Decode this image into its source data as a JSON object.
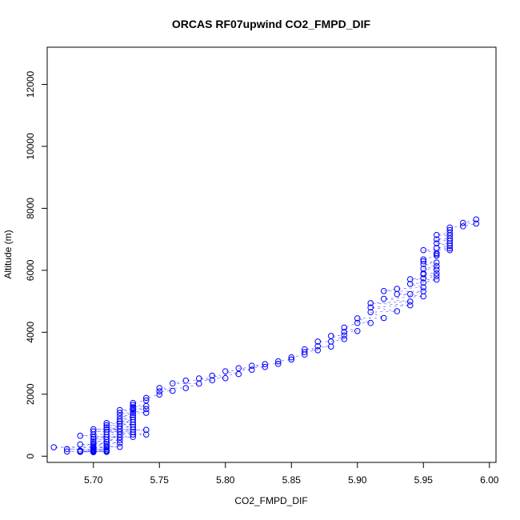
{
  "chart_data": {
    "type": "scatter",
    "title": "ORCAS RF07upwind CO2_FMPD_DIF",
    "xlabel": "CO2_FMPD_DIF",
    "ylabel": "Altitude (m)",
    "xlim": [
      5.665,
      6.005
    ],
    "ylim": [
      -200,
      13200
    ],
    "x_ticks": [
      5.7,
      5.75,
      5.8,
      5.85,
      5.9,
      5.95,
      6.0
    ],
    "x_tick_labels": [
      "5.70",
      "5.75",
      "5.80",
      "5.85",
      "5.90",
      "5.95",
      "6.00"
    ],
    "y_ticks": [
      0,
      2000,
      4000,
      6000,
      8000,
      10000,
      12000
    ],
    "y_tick_labels": [
      "0",
      "2000",
      "4000",
      "6000",
      "8000",
      "10000",
      "12000"
    ],
    "grid": false,
    "marker": "open-circle",
    "marker_color": "#0000ff",
    "connector": "dashed",
    "series": [
      {
        "x": [
          5.67,
          5.68,
          5.68,
          5.69,
          5.69,
          5.69,
          5.69,
          5.69,
          5.69,
          5.7,
          5.7,
          5.7,
          5.7,
          5.7,
          5.7,
          5.7,
          5.7,
          5.7,
          5.7,
          5.7,
          5.7,
          5.7,
          5.7,
          5.7,
          5.7,
          5.71,
          5.71,
          5.71,
          5.71,
          5.71,
          5.71,
          5.71,
          5.71,
          5.71,
          5.71,
          5.71,
          5.71,
          5.71,
          5.71,
          5.71,
          5.71,
          5.72,
          5.72,
          5.72,
          5.72,
          5.72,
          5.72,
          5.72,
          5.72,
          5.72,
          5.72,
          5.72,
          5.72,
          5.72,
          5.72,
          5.73,
          5.73,
          5.73,
          5.73,
          5.73,
          5.73,
          5.73,
          5.73,
          5.73,
          5.73,
          5.73,
          5.73,
          5.73,
          5.73,
          5.73,
          5.73,
          5.73,
          5.74,
          5.74,
          5.74,
          5.74,
          5.74,
          5.74,
          5.74,
          5.75,
          5.75,
          5.75,
          5.76,
          5.76,
          5.77,
          5.77,
          5.78,
          5.78,
          5.79,
          5.79,
          5.8,
          5.8,
          5.81,
          5.81,
          5.82,
          5.82,
          5.83,
          5.83,
          5.84,
          5.84,
          5.85,
          5.85,
          5.86,
          5.86,
          5.86,
          5.87,
          5.87,
          5.87,
          5.88,
          5.88,
          5.88,
          5.89,
          5.89,
          5.89,
          5.89,
          5.9,
          5.9,
          5.9,
          5.91,
          5.91,
          5.91,
          5.91,
          5.92,
          5.92,
          5.92,
          5.93,
          5.93,
          5.93,
          5.94,
          5.94,
          5.94,
          5.94,
          5.94,
          5.95,
          5.95,
          5.95,
          5.95,
          5.95,
          5.95,
          5.95,
          5.95,
          5.95,
          5.95,
          5.95,
          5.95,
          5.96,
          5.96,
          5.96,
          5.96,
          5.96,
          5.96,
          5.96,
          5.96,
          5.96,
          5.96,
          5.96,
          5.96,
          5.96,
          5.97,
          5.97,
          5.97,
          5.97,
          5.97,
          5.97,
          5.97,
          5.97,
          5.97,
          5.97,
          5.98,
          5.98,
          5.99,
          5.99
        ],
        "y": [
          290,
          230,
          150,
          660,
          380,
          180,
          160,
          150,
          140,
          870,
          800,
          700,
          620,
          550,
          480,
          420,
          360,
          300,
          270,
          240,
          210,
          190,
          170,
          150,
          130,
          1070,
          1000,
          930,
          860,
          780,
          700,
          620,
          540,
          460,
          390,
          330,
          280,
          230,
          190,
          160,
          140,
          1490,
          1400,
          1300,
          1200,
          1120,
          1050,
          970,
          880,
          790,
          700,
          610,
          520,
          420,
          300,
          1720,
          1650,
          1580,
          1520,
          1460,
          1400,
          1330,
          1260,
          1180,
          1100,
          1020,
          940,
          860,
          780,
          700,
          620,
          1540,
          1880,
          1800,
          1620,
          1520,
          1400,
          850,
          700,
          2200,
          2090,
          1990,
          2350,
          2110,
          2440,
          2200,
          2510,
          2340,
          2600,
          2450,
          2740,
          2520,
          2840,
          2650,
          2920,
          2790,
          2970,
          2880,
          3060,
          2980,
          3190,
          3120,
          3450,
          3360,
          3280,
          3700,
          3550,
          3420,
          3880,
          3700,
          3540,
          4150,
          4010,
          3900,
          3780,
          4450,
          4300,
          4040,
          4940,
          4800,
          4650,
          4300,
          5330,
          5080,
          4460,
          5400,
          5230,
          4680,
          5710,
          5560,
          5230,
          4990,
          4870,
          6650,
          6350,
          6200,
          6050,
          5900,
          5740,
          5600,
          5450,
          5320,
          5160,
          6290,
          5870,
          7140,
          7000,
          6870,
          6720,
          6560,
          6470,
          6250,
          6130,
          6020,
          5900,
          5810,
          5700,
          6520,
          7380,
          7300,
          7210,
          7120,
          7030,
          6950,
          6870,
          6790,
          6710,
          6650,
          7530,
          7420,
          7640,
          7510
        ]
      }
    ]
  }
}
